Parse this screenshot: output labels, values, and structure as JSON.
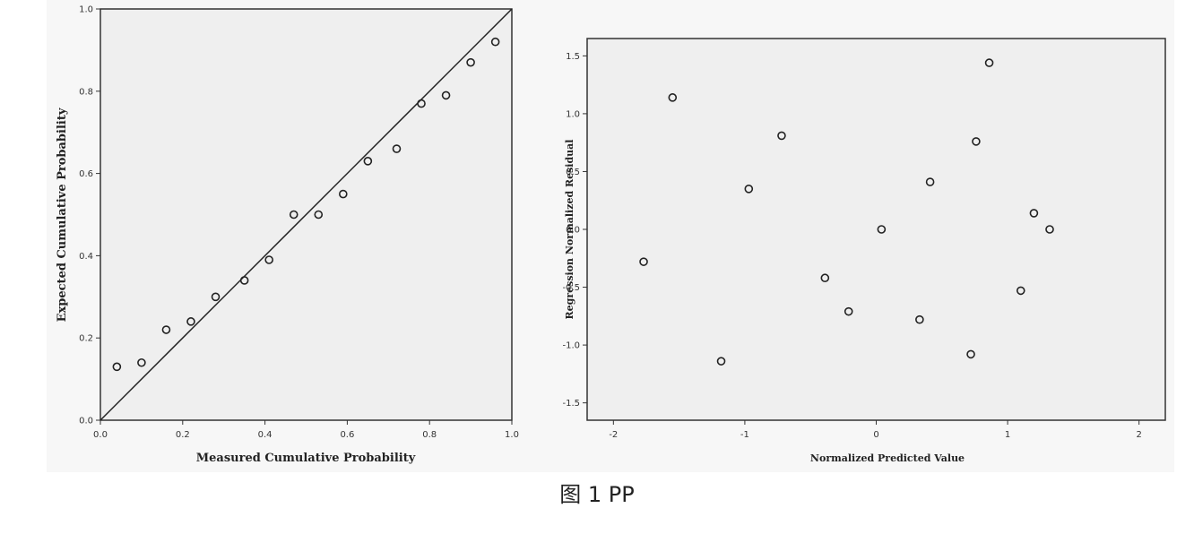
{
  "caption": "图 1   PP",
  "colors": {
    "plot_bg": "#efefef",
    "axis": "#333333",
    "marker": "#222222"
  },
  "chart_data": [
    {
      "type": "scatter",
      "title": "",
      "xlabel": "Measured Cumulative Probability",
      "ylabel": "Expected Cumulative Probability",
      "xlim": [
        0.0,
        1.0
      ],
      "ylim": [
        0.0,
        1.0
      ],
      "xticks": [
        "0.0",
        "0.2",
        "0.4",
        "0.6",
        "0.8",
        "1.0"
      ],
      "yticks": [
        "0.0",
        "0.2",
        "0.4",
        "0.6",
        "0.8",
        "1.0"
      ],
      "reference_line": "y = x",
      "grid": false,
      "points": [
        [
          0.04,
          0.13
        ],
        [
          0.1,
          0.14
        ],
        [
          0.16,
          0.22
        ],
        [
          0.22,
          0.24
        ],
        [
          0.28,
          0.3
        ],
        [
          0.35,
          0.34
        ],
        [
          0.41,
          0.39
        ],
        [
          0.47,
          0.5
        ],
        [
          0.53,
          0.5
        ],
        [
          0.59,
          0.55
        ],
        [
          0.65,
          0.63
        ],
        [
          0.72,
          0.66
        ],
        [
          0.78,
          0.77
        ],
        [
          0.84,
          0.79
        ],
        [
          0.9,
          0.87
        ],
        [
          0.96,
          0.92
        ]
      ]
    },
    {
      "type": "scatter",
      "title": "",
      "xlabel": "Normalized Predicted Value",
      "ylabel": "Regression Normalized Residual",
      "xlim": [
        -2.2,
        2.2
      ],
      "ylim": [
        -1.65,
        1.65
      ],
      "xticks": [
        "-2",
        "-1",
        "0",
        "1",
        "2"
      ],
      "yticks": [
        "-1.5",
        "-1.0",
        "-0.5",
        "0.0",
        "0.5",
        "1.0",
        "1.5"
      ],
      "grid": false,
      "points": [
        [
          -1.77,
          -0.28
        ],
        [
          -1.55,
          1.14
        ],
        [
          -1.18,
          -1.14
        ],
        [
          -0.97,
          0.35
        ],
        [
          -0.72,
          0.81
        ],
        [
          -0.39,
          -0.42
        ],
        [
          -0.21,
          -0.71
        ],
        [
          0.04,
          0.0
        ],
        [
          0.33,
          -0.78
        ],
        [
          0.41,
          0.41
        ],
        [
          0.72,
          -1.08
        ],
        [
          0.76,
          0.76
        ],
        [
          0.86,
          1.44
        ],
        [
          1.1,
          -0.53
        ],
        [
          1.2,
          0.14
        ],
        [
          1.32,
          0.0
        ]
      ]
    }
  ]
}
